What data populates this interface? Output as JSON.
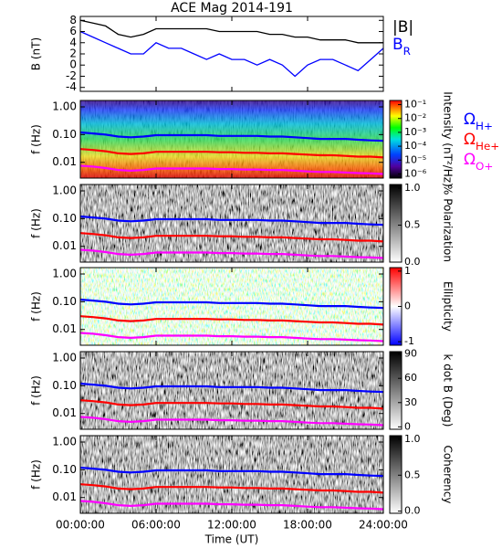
{
  "chart_data": {
    "type": "multi-panel",
    "title": "ACE Mag 2014-191",
    "xlabel": "Time (UT)",
    "xlim": [
      0,
      24
    ],
    "xticks": [
      {
        "value": 0,
        "label": "00:00:00"
      },
      {
        "value": 6,
        "label": "06:00:00"
      },
      {
        "value": 12,
        "label": "12:00:00"
      },
      {
        "value": 18,
        "label": "18:00:00"
      },
      {
        "value": 24,
        "label": "24:00:00"
      }
    ],
    "x": [
      0,
      1,
      2,
      3,
      4,
      5,
      6,
      7,
      8,
      9,
      10,
      11,
      12,
      13,
      14,
      15,
      16,
      17,
      18,
      19,
      20,
      21,
      22,
      23,
      24
    ],
    "gyrofrequencies": [
      {
        "name": "ΩH+",
        "color": "#0000ff",
        "values": [
          0.12,
          0.11,
          0.1,
          0.085,
          0.08,
          0.085,
          0.095,
          0.095,
          0.095,
          0.095,
          0.095,
          0.09,
          0.09,
          0.09,
          0.09,
          0.085,
          0.085,
          0.08,
          0.075,
          0.07,
          0.07,
          0.07,
          0.065,
          0.062,
          0.06
        ]
      },
      {
        "name": "ΩHe+",
        "color": "#ff0000",
        "values": [
          0.03,
          0.028,
          0.025,
          0.021,
          0.02,
          0.021,
          0.024,
          0.024,
          0.024,
          0.024,
          0.024,
          0.023,
          0.023,
          0.022,
          0.022,
          0.021,
          0.021,
          0.02,
          0.019,
          0.018,
          0.018,
          0.017,
          0.016,
          0.016,
          0.015
        ]
      },
      {
        "name": "ΩO+",
        "color": "#ff00ff",
        "values": [
          0.0075,
          0.007,
          0.0062,
          0.0053,
          0.005,
          0.0053,
          0.006,
          0.006,
          0.006,
          0.006,
          0.006,
          0.0057,
          0.0057,
          0.0055,
          0.0055,
          0.0053,
          0.0053,
          0.005,
          0.0047,
          0.0045,
          0.0045,
          0.0043,
          0.0041,
          0.004,
          0.0038
        ]
      }
    ],
    "panels": [
      {
        "type": "line",
        "ylabel": "B (nT)",
        "ylim": [
          -4.7,
          8.7
        ],
        "yticks": [
          -4,
          -2,
          0,
          2,
          4,
          6,
          8
        ],
        "series": [
          {
            "name": "|B|",
            "color": "#000000",
            "values": [
              8,
              7.5,
              7,
              5.5,
              5,
              5.5,
              6.5,
              6.5,
              6.5,
              6.5,
              6.5,
              6,
              6,
              6,
              6,
              5.5,
              5.5,
              5,
              5,
              4.5,
              4.5,
              4.5,
              4,
              4,
              4
            ]
          },
          {
            "name": "BR",
            "color": "#0000ff",
            "values": [
              6,
              5,
              4,
              3,
              2,
              2,
              4,
              3,
              3,
              2,
              1,
              2,
              1,
              1,
              0,
              1,
              0,
              -2,
              0,
              1,
              1,
              0,
              -1,
              1,
              3
            ]
          }
        ]
      },
      {
        "type": "spectrogram",
        "style": "intensity",
        "ylabel": "f (Hz)",
        "ylim": [
          0.0027,
          1.7
        ],
        "yticks": [
          {
            "value": 0.01,
            "label": "0.01"
          },
          {
            "value": 0.1,
            "label": "0.10"
          },
          {
            "value": 1,
            "label": "1.00"
          }
        ],
        "colorbar": {
          "label": "Intensity (nT²/Hz)",
          "log": true,
          "lim": [
            5e-07,
            0.2
          ],
          "ticks": [
            {
              "value": 1e-06,
              "label": "10⁻⁶"
            },
            {
              "value": 1e-05,
              "label": "10⁻⁵"
            },
            {
              "value": 0.0001,
              "label": "10⁻⁴"
            },
            {
              "value": 0.001,
              "label": "10⁻³"
            },
            {
              "value": 0.01,
              "label": "10⁻²"
            },
            {
              "value": 0.1,
              "label": "10⁻¹"
            }
          ]
        }
      },
      {
        "type": "spectrogram",
        "style": "gray",
        "ylabel": "f (Hz)",
        "ylim": [
          0.0027,
          1.7
        ],
        "yticks": [
          {
            "value": 0.01,
            "label": "0.01"
          },
          {
            "value": 0.1,
            "label": "0.10"
          },
          {
            "value": 1,
            "label": "1.00"
          }
        ],
        "colorbar": {
          "label": "% Polarization",
          "log": false,
          "lim": [
            0,
            1.05
          ],
          "ticks": [
            {
              "value": 0,
              "label": "0.0"
            },
            {
              "value": 0.5,
              "label": "0.5"
            },
            {
              "value": 1,
              "label": "1.0"
            }
          ]
        }
      },
      {
        "type": "spectrogram",
        "style": "ellipticity",
        "ylabel": "f (Hz)",
        "ylim": [
          0.0027,
          1.7
        ],
        "yticks": [
          {
            "value": 0.01,
            "label": "0.01"
          },
          {
            "value": 0.1,
            "label": "0.10"
          },
          {
            "value": 1,
            "label": "1.00"
          }
        ],
        "colorbar": {
          "label": "Ellipticity",
          "log": false,
          "lim": [
            -1.1,
            1.1
          ],
          "ticks": [
            -1,
            0,
            1
          ]
        }
      },
      {
        "type": "spectrogram",
        "style": "gray",
        "ylabel": "f (Hz)",
        "ylim": [
          0.0027,
          1.7
        ],
        "yticks": [
          {
            "value": 0.01,
            "label": "0.01"
          },
          {
            "value": 0.1,
            "label": "0.10"
          },
          {
            "value": 1,
            "label": "1.00"
          }
        ],
        "colorbar": {
          "label": "k dot B (Deg)",
          "log": false,
          "lim": [
            -3,
            93
          ],
          "ticks": [
            0,
            30,
            60,
            90
          ]
        }
      },
      {
        "type": "spectrogram",
        "style": "gray",
        "ylabel": "f (Hz)",
        "ylim": [
          0.0027,
          1.7
        ],
        "yticks": [
          {
            "value": 0.01,
            "label": "0.01"
          },
          {
            "value": 0.1,
            "label": "0.10"
          },
          {
            "value": 1,
            "label": "1.00"
          }
        ],
        "colorbar": {
          "label": "Coherency",
          "log": false,
          "lim": [
            -0.03,
            1.05
          ],
          "ticks": [
            {
              "value": 0,
              "label": "0.0"
            },
            {
              "value": 0.5,
              "label": "0.5"
            },
            {
              "value": 1,
              "label": "1.0"
            }
          ]
        }
      }
    ]
  }
}
